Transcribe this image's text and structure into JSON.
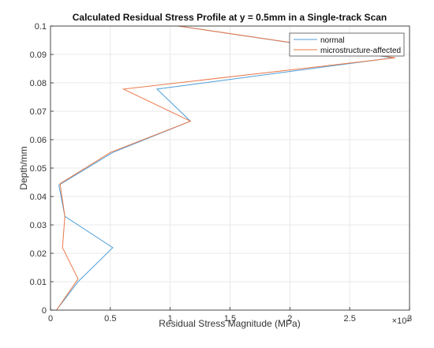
{
  "chart_data": {
    "type": "line",
    "title": "Calculated Residual Stress Profile at y = 0.5mm in a Single-track Scan",
    "xlabel": "Residual Stress Magnitude (MPa)",
    "ylabel": "Depth/mm",
    "x_exponent_label": "×10²",
    "xlim": [
      0,
      3
    ],
    "ylim": [
      0,
      0.1
    ],
    "xticks": [
      0,
      0.5,
      1,
      1.5,
      2,
      2.5,
      3
    ],
    "xtick_labels": [
      "0",
      "0.5",
      "1",
      "1.5",
      "2",
      "2.5",
      "3"
    ],
    "yticks": [
      0,
      0.01,
      0.02,
      0.03,
      0.04,
      0.05,
      0.06,
      0.07,
      0.08,
      0.09,
      0.1
    ],
    "ytick_labels": [
      "0",
      "0.01",
      "0.02",
      "0.03",
      "0.04",
      "0.05",
      "0.06",
      "0.07",
      "0.08",
      "0.09",
      "0.1"
    ],
    "grid": true,
    "legend_position": "top-right",
    "series": [
      {
        "name": "normal",
        "color": "#4d9ed8",
        "x": [
          0.05,
          0.23,
          0.52,
          0.12,
          0.07,
          0.52,
          1.17,
          0.89,
          2.86,
          1.07
        ],
        "y": [
          0.0,
          0.01,
          0.022,
          0.033,
          0.044,
          0.0555,
          0.0665,
          0.0778,
          0.0888,
          0.1
        ]
      },
      {
        "name": "microstructure-affected",
        "color": "#e8794a",
        "x": [
          0.05,
          0.23,
          0.1,
          0.12,
          0.08,
          0.5,
          1.17,
          0.61,
          2.88,
          1.07
        ],
        "y": [
          0.0,
          0.011,
          0.022,
          0.033,
          0.0445,
          0.0555,
          0.0665,
          0.0778,
          0.0888,
          0.1
        ]
      }
    ]
  }
}
